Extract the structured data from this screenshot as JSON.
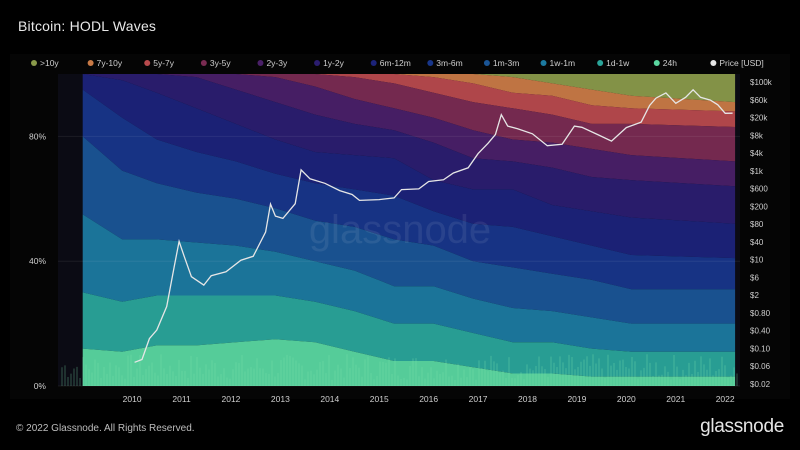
{
  "header": {
    "title": "Bitcoin: HODL Waves"
  },
  "footer": {
    "copyright": "© 2022 Glassnode. All Rights Reserved.",
    "logo": "glassnode"
  },
  "chart_data": {
    "type": "area",
    "stacked": true,
    "watermark": "glassnode",
    "x_ticks": [
      "2010",
      "2011",
      "2012",
      "2013",
      "2014",
      "2015",
      "2016",
      "2017",
      "2018",
      "2019",
      "2020",
      "2021",
      "2022"
    ],
    "y_left_ticks": [
      {
        "label": "0%",
        "value": 0
      },
      {
        "label": "40%",
        "value": 40
      },
      {
        "label": "80%",
        "value": 80
      }
    ],
    "y_right_ticks": [
      "$100k",
      "$60k",
      "$20k",
      "$8k",
      "$4k",
      "$1k",
      "$600",
      "$200",
      "$80",
      "$40",
      "$10",
      "$6",
      "$2",
      "$0.80",
      "$0.40",
      "$0.10",
      "$0.06",
      "$0.02"
    ],
    "legend_position": "top",
    "series": [
      {
        "name": ">10y",
        "color": "#8a9a4a",
        "values": [
          0,
          0,
          0,
          0,
          0,
          0,
          0,
          0,
          0,
          0,
          0,
          1,
          3,
          5,
          7,
          9
        ]
      },
      {
        "name": "7y-10y",
        "color": "#c97a46",
        "values": [
          0,
          0,
          0,
          0,
          0,
          0,
          0,
          0,
          0,
          1,
          3,
          5,
          4,
          5,
          4,
          3
        ]
      },
      {
        "name": "5y-7y",
        "color": "#b84a4d",
        "values": [
          0,
          0,
          0,
          0,
          0,
          0,
          0,
          1,
          3,
          5,
          6,
          5,
          6,
          6,
          5,
          5
        ]
      },
      {
        "name": "3y-5y",
        "color": "#7a2b52",
        "values": [
          0,
          0,
          0,
          0,
          0,
          1,
          4,
          7,
          8,
          8,
          9,
          10,
          9,
          8,
          10,
          11
        ]
      },
      {
        "name": "2y-3y",
        "color": "#4a2068",
        "values": [
          0,
          0,
          0,
          1,
          5,
          8,
          9,
          8,
          7,
          8,
          9,
          7,
          8,
          9,
          8,
          8
        ]
      },
      {
        "name": "1y-2y",
        "color": "#2b1d70",
        "values": [
          0,
          2,
          6,
          10,
          11,
          12,
          12,
          10,
          9,
          12,
          10,
          9,
          12,
          11,
          12,
          12
        ]
      },
      {
        "name": "6m-12m",
        "color": "#1c237a",
        "values": [
          5,
          12,
          15,
          14,
          12,
          11,
          10,
          11,
          12,
          10,
          11,
          12,
          10,
          11,
          12,
          11
        ]
      },
      {
        "name": "3m-6m",
        "color": "#18368a",
        "values": [
          15,
          17,
          14,
          13,
          12,
          11,
          12,
          12,
          14,
          11,
          12,
          13,
          12,
          11,
          11,
          10
        ]
      },
      {
        "name": "1m-3m",
        "color": "#1a5596",
        "values": [
          25,
          22,
          18,
          16,
          15,
          14,
          13,
          14,
          15,
          13,
          12,
          13,
          12,
          12,
          11,
          11
        ]
      },
      {
        "name": "1w-1m",
        "color": "#1c7aa0",
        "values": [
          25,
          20,
          18,
          17,
          16,
          14,
          13,
          13,
          12,
          12,
          11,
          11,
          10,
          10,
          9,
          9
        ]
      },
      {
        "name": "1d-1w",
        "color": "#2aa59a",
        "values": [
          18,
          16,
          16,
          16,
          15,
          14,
          13,
          13,
          12,
          12,
          11,
          10,
          10,
          9,
          8,
          8
        ]
      },
      {
        "name": "24h",
        "color": "#5ad7a0",
        "values": [
          12,
          11,
          13,
          13,
          14,
          15,
          14,
          11,
          8,
          8,
          6,
          4,
          4,
          3,
          3,
          3
        ]
      }
    ],
    "x_sample_years": [
      2009.5,
      2010.3,
      2011.0,
      2011.8,
      2012.6,
      2013.4,
      2014.2,
      2015.0,
      2015.8,
      2016.6,
      2017.4,
      2018.2,
      2019.0,
      2019.8,
      2020.6,
      2022.7
    ],
    "price_series": {
      "name": "Price [USD]",
      "color": "#e6e6e6",
      "points": [
        [
          2010.55,
          0.06
        ],
        [
          2010.7,
          0.07
        ],
        [
          2010.85,
          0.2
        ],
        [
          2011.0,
          0.3
        ],
        [
          2011.2,
          1
        ],
        [
          2011.35,
          8
        ],
        [
          2011.45,
          29
        ],
        [
          2011.55,
          14
        ],
        [
          2011.7,
          5
        ],
        [
          2011.95,
          3
        ],
        [
          2012.1,
          5
        ],
        [
          2012.4,
          6
        ],
        [
          2012.7,
          11
        ],
        [
          2012.95,
          13
        ],
        [
          2013.2,
          45
        ],
        [
          2013.3,
          200
        ],
        [
          2013.4,
          110
        ],
        [
          2013.55,
          90
        ],
        [
          2013.8,
          200
        ],
        [
          2013.92,
          1100
        ],
        [
          2014.1,
          700
        ],
        [
          2014.4,
          550
        ],
        [
          2014.7,
          400
        ],
        [
          2014.95,
          320
        ],
        [
          2015.1,
          230
        ],
        [
          2015.5,
          250
        ],
        [
          2015.8,
          280
        ],
        [
          2015.95,
          430
        ],
        [
          2016.3,
          420
        ],
        [
          2016.5,
          650
        ],
        [
          2016.8,
          700
        ],
        [
          2017.0,
          950
        ],
        [
          2017.3,
          1200
        ],
        [
          2017.5,
          2500
        ],
        [
          2017.7,
          4200
        ],
        [
          2017.85,
          7000
        ],
        [
          2017.97,
          19000
        ],
        [
          2018.1,
          11000
        ],
        [
          2018.3,
          9000
        ],
        [
          2018.6,
          7000
        ],
        [
          2018.9,
          3800
        ],
        [
          2019.2,
          4000
        ],
        [
          2019.45,
          11000
        ],
        [
          2019.6,
          10000
        ],
        [
          2019.9,
          7200
        ],
        [
          2020.2,
          5000
        ],
        [
          2020.5,
          9500
        ],
        [
          2020.8,
          13000
        ],
        [
          2020.97,
          29000
        ],
        [
          2021.1,
          45000
        ],
        [
          2021.3,
          60000
        ],
        [
          2021.5,
          34000
        ],
        [
          2021.7,
          45000
        ],
        [
          2021.85,
          66000
        ],
        [
          2022.0,
          46000
        ],
        [
          2022.2,
          40000
        ],
        [
          2022.35,
          30000
        ],
        [
          2022.5,
          20000
        ],
        [
          2022.65,
          21000
        ]
      ]
    },
    "legend_entries": [
      ">10y",
      "7y-10y",
      "5y-7y",
      "3y-5y",
      "2y-3y",
      "1y-2y",
      "6m-12m",
      "3m-6m",
      "1m-3m",
      "1w-1m",
      "1d-1w",
      "24h",
      "Price [USD]"
    ],
    "legend_colors": [
      "#8a9a4a",
      "#c97a46",
      "#b84a4d",
      "#7a2b52",
      "#4a2068",
      "#2b1d70",
      "#1c237a",
      "#18368a",
      "#1a5596",
      "#1c7aa0",
      "#2aa59a",
      "#5ad7a0",
      "#e6e6e6"
    ],
    "y_left_range": [
      0,
      100
    ],
    "y_right_scale": "log",
    "x_range": [
      2009.0,
      2022.8
    ]
  }
}
